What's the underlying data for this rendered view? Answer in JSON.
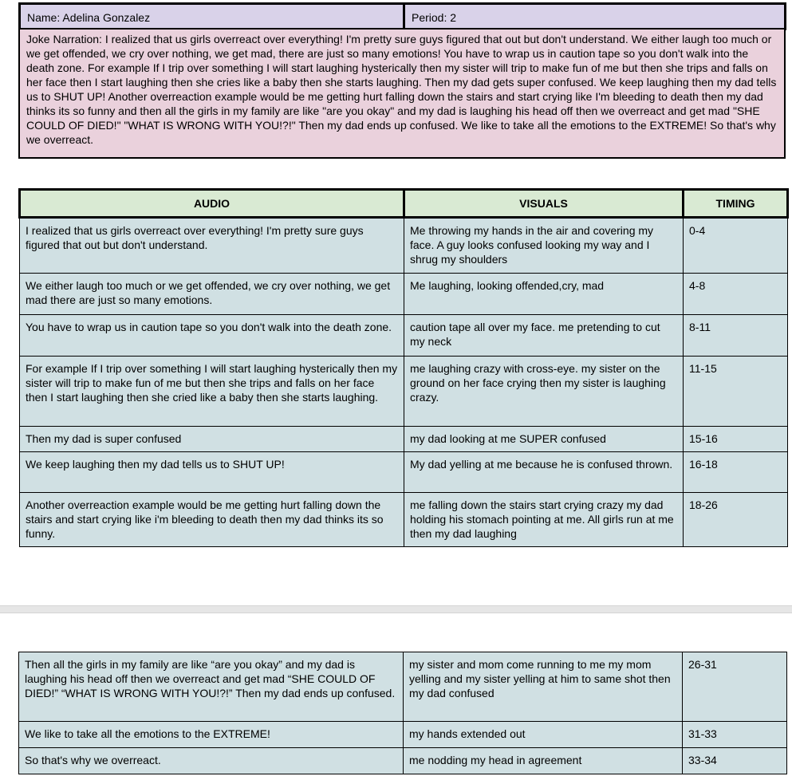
{
  "header": {
    "name": "Name: Adelina Gonzalez",
    "period": "Period: 2"
  },
  "narration": "Joke Narration: I realized that us girls overreact over everything! I'm pretty sure guys figured that out but don't understand. We either laugh too much or we get offended, we cry over nothing, we get mad, there are just so many emotions! You have to wrap us in caution tape so you don't walk into the death zone. For example If I trip over something I will start laughing hysterically then my sister will trip to make fun of me but then she trips and falls on her face then I start laughing then she cries like a baby then she starts laughing. Then my dad gets super confused.  We keep laughing then my dad tells us to SHUT UP! Another overreaction example would be me getting hurt falling down the stairs and start crying like I'm bleeding to death then my dad thinks its so funny and then all the girls in my family are like \"are you okay\" and my dad is laughing his head off  then we overreact and get mad \"SHE COULD OF DIED!\" \"WHAT IS WRONG WITH YOU!?!\" Then my dad ends up confused. We like to take all the emotions to the EXTREME!  So that's why we overreact.",
  "table": {
    "columns": [
      "AUDIO",
      "VISUALS",
      "TIMING"
    ],
    "rows": [
      {
        "audio": "I realized that us girls overreact over everything! I'm pretty sure guys figured that out but don't understand.",
        "visuals": "Me throwing my hands in the air and covering my face. A guy looks confused looking my way and I shrug my shoulders",
        "timing": "0-4"
      },
      {
        "audio": "We either laugh too much or we get offended, we cry over nothing, we get mad there are just so many emotions.",
        "visuals": "Me laughing, looking offended,cry, mad",
        "timing": "4-8"
      },
      {
        "audio": "You have to wrap us in caution tape so you don't walk into the death zone.",
        "visuals": "caution tape all over my face. me pretending to cut my neck",
        "timing": "8-11"
      },
      {
        "audio": "For example If I trip over something I will start laughing hysterically then my sister will trip to make fun of me but then she trips and falls on her face then I start laughing then she cried like a baby then she starts laughing.",
        "visuals": "me laughing crazy with cross-eye. my sister on the ground on her face crying then my sister is laughing crazy.",
        "timing": "11-15"
      },
      {
        "audio": "Then my dad is super confused",
        "visuals": "my dad looking at me SUPER confused",
        "timing": "15-16"
      },
      {
        "audio": "We keep laughing then my dad tells us to SHUT UP!",
        "visuals": "My dad yelling at me because he is confused thrown.",
        "timing": "16-18"
      },
      {
        "audio": " Another overreaction example would be me getting hurt falling down the stairs and start crying like i'm bleeding to death then my dad thinks its so funny.",
        "visuals": "me falling down the stairs start crying crazy my dad holding his stomach pointing at me. All girls run at me then my dad laughing",
        "timing": "18-26"
      }
    ],
    "rows_page2": [
      {
        "audio": "Then all the girls in my family are like “are you okay” and my dad is laughing his head off  then we overreact and get mad “SHE COULD OF DIED!” “WHAT IS WRONG WITH YOU!?!” Then my dad ends up confused.",
        "visuals": "my sister and mom come running to me my mom yelling and my sister yelling at him to same shot then my dad confused",
        "timing": "26-31"
      },
      {
        "audio": "We like to take all the emotions to the EXTREME!",
        "visuals": "my hands extended out",
        "timing": "31-33"
      },
      {
        "audio": " So that's why we overreact.",
        "visuals": "me nodding my head in agreement",
        "timing": "33-34"
      }
    ]
  },
  "colors": {
    "header": "#d9d2e9",
    "narration": "#ead1dc",
    "table_header": "#d9ead3",
    "table_cell": "#d0e0e3"
  }
}
